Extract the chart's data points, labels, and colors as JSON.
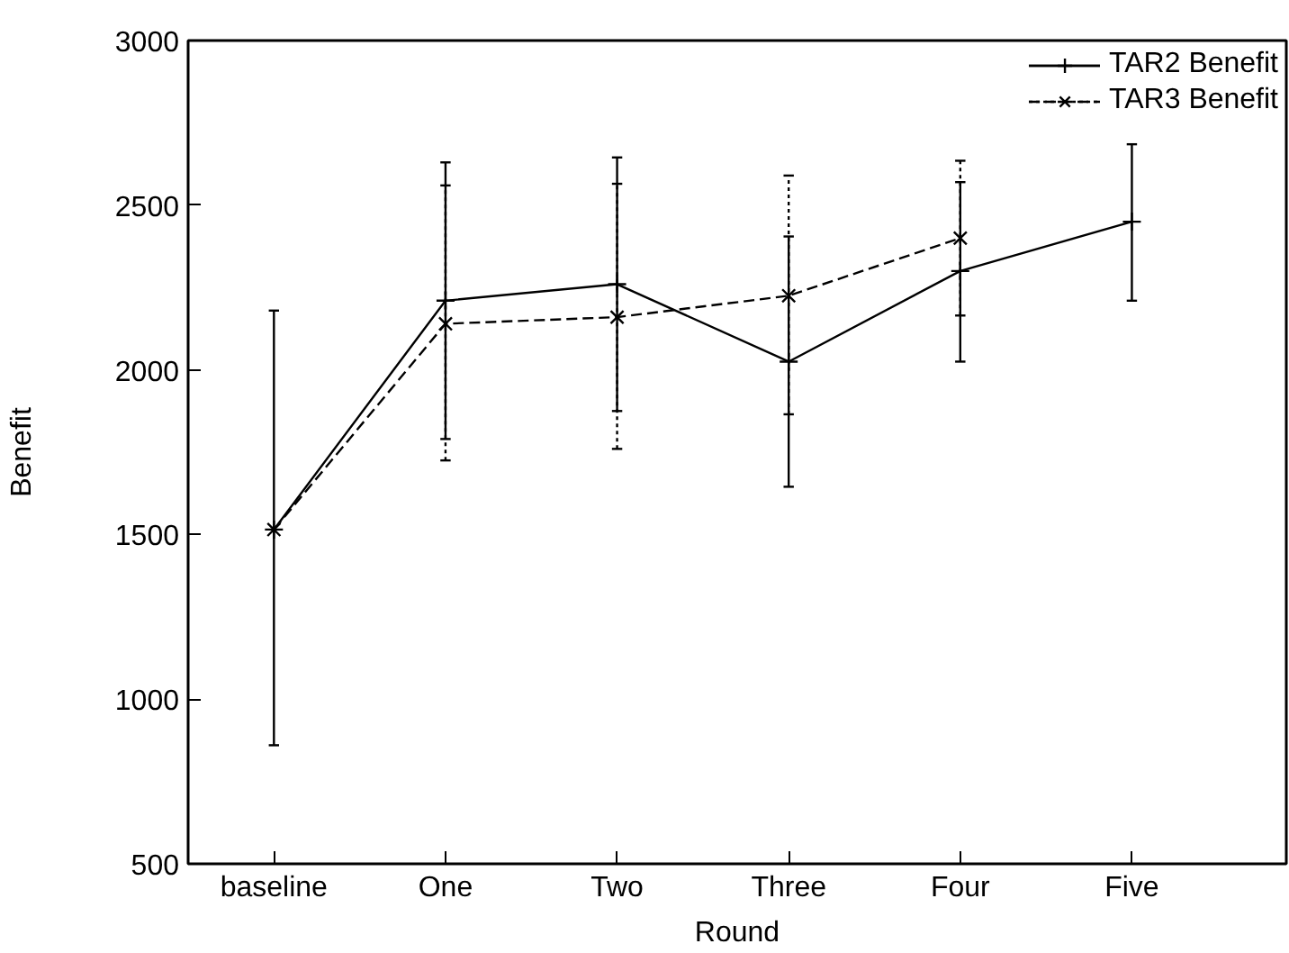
{
  "chart_data": {
    "type": "line",
    "xlabel": "Round",
    "ylabel": "Benefit",
    "categories": [
      "baseline",
      "One",
      "Two",
      "Three",
      "Four",
      "Five"
    ],
    "ylim": [
      500,
      3000
    ],
    "yticks": [
      500,
      1000,
      1500,
      2000,
      2500,
      3000
    ],
    "grid": false,
    "legend": "top right",
    "series": [
      {
        "name": "TAR2 Benefit",
        "color": "#000000",
        "marker": "cross",
        "line_style": "solid",
        "values": [
          1515,
          2210,
          2260,
          2025,
          2300,
          2450
        ],
        "errors": [
          [
            860,
            2180
          ],
          [
            1790,
            2630
          ],
          [
            1875,
            2645
          ],
          [
            1645,
            2405
          ],
          [
            2025,
            2570
          ],
          [
            2210,
            2685
          ]
        ]
      },
      {
        "name": "TAR3 Benefit",
        "color": "#000000",
        "marker": "cross",
        "line_style": "dashed",
        "values": [
          1515,
          2140,
          2160,
          2225,
          2400,
          null
        ],
        "errors": [
          null,
          [
            1725,
            2560
          ],
          [
            1760,
            2565
          ],
          [
            1865,
            2590
          ],
          [
            2165,
            2635
          ],
          null
        ]
      }
    ]
  }
}
